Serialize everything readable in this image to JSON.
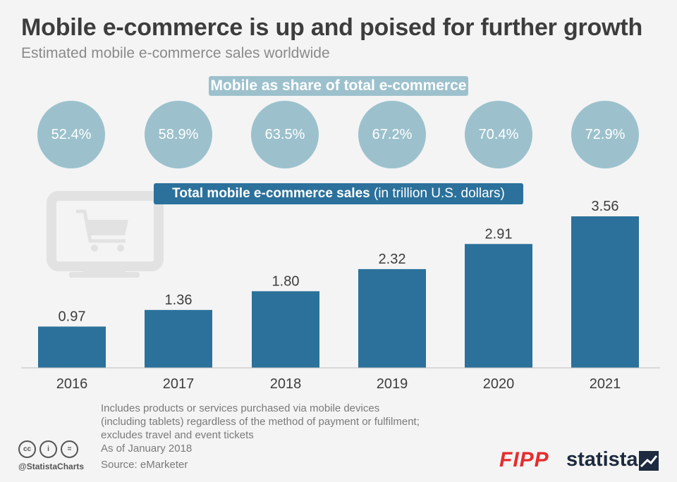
{
  "title": "Mobile e-commerce is up and poised for further growth",
  "subtitle": "Estimated mobile e-commerce sales worldwide",
  "share_banner": "Mobile as share of total e-commerce",
  "shares": [
    "52.4%",
    "58.9%",
    "63.5%",
    "67.2%",
    "70.4%",
    "72.9%"
  ],
  "sales_banner": {
    "bold": "Total mobile e-commerce sales",
    "rest": " (in trillion U.S. dollars)"
  },
  "chart_data": {
    "type": "bar",
    "categories": [
      "2016",
      "2017",
      "2018",
      "2019",
      "2020",
      "2021"
    ],
    "values": [
      0.97,
      1.36,
      1.8,
      2.32,
      2.91,
      3.56
    ],
    "value_labels": [
      "0.97",
      "1.36",
      "1.80",
      "2.32",
      "2.91",
      "3.56"
    ],
    "ylim": [
      0,
      3.56
    ],
    "bar_color": "#2b719b",
    "grid": false
  },
  "background_icon": "shopping-cart-monitor-icon",
  "note_lines": [
    "Includes products or services purchased via mobile devices",
    "(including tablets) regardless of the method of payment or fulfilment;",
    "excludes travel and event tickets",
    "As of January 2018"
  ],
  "source": "Source: eMarketer",
  "handle": "@StatistaCharts",
  "brand_fipp": "FIPP",
  "brand_statista": "statista",
  "colors": {
    "bubble": "#9cc1cd",
    "bar": "#2b719b",
    "fipp": "#e52d2d",
    "statista": "#1d2a3f"
  }
}
